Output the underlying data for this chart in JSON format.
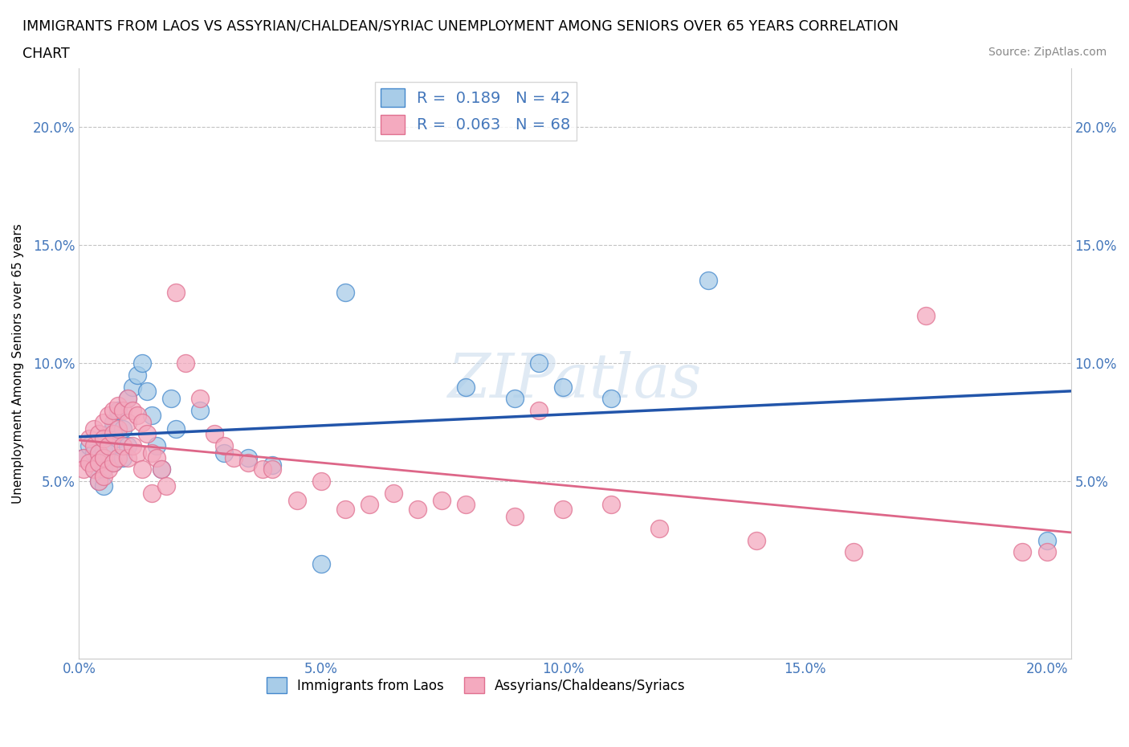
{
  "title_line1": "IMMIGRANTS FROM LAOS VS ASSYRIAN/CHALDEAN/SYRIAC UNEMPLOYMENT AMONG SENIORS OVER 65 YEARS CORRELATION",
  "title_line2": "CHART",
  "source": "Source: ZipAtlas.com",
  "ylabel": "Unemployment Among Seniors over 65 years",
  "xlim": [
    0.0,
    0.205
  ],
  "ylim": [
    -0.025,
    0.225
  ],
  "xticks": [
    0.0,
    0.05,
    0.1,
    0.15,
    0.2
  ],
  "yticks": [
    0.05,
    0.1,
    0.15,
    0.2
  ],
  "xticklabels": [
    "0.0%",
    "5.0%",
    "10.0%",
    "15.0%",
    "20.0%"
  ],
  "yticklabels": [
    "5.0%",
    "10.0%",
    "15.0%",
    "20.0%"
  ],
  "blue_R": 0.189,
  "blue_N": 42,
  "pink_R": 0.063,
  "pink_N": 68,
  "legend_label_blue": "Immigrants from Laos",
  "legend_label_pink": "Assyrians/Chaldeans/Syriacs",
  "blue_color": "#a8cce8",
  "pink_color": "#f4aabf",
  "blue_edge_color": "#4488cc",
  "pink_edge_color": "#e07090",
  "blue_line_color": "#2255aa",
  "pink_line_color": "#dd6688",
  "tick_color": "#4477bb",
  "watermark": "ZIPatlas",
  "blue_x": [
    0.001,
    0.002,
    0.003,
    0.003,
    0.004,
    0.004,
    0.004,
    0.005,
    0.005,
    0.005,
    0.006,
    0.006,
    0.007,
    0.007,
    0.008,
    0.008,
    0.009,
    0.009,
    0.01,
    0.01,
    0.011,
    0.012,
    0.013,
    0.014,
    0.015,
    0.016,
    0.017,
    0.019,
    0.02,
    0.025,
    0.03,
    0.035,
    0.04,
    0.05,
    0.055,
    0.08,
    0.09,
    0.095,
    0.1,
    0.11,
    0.13,
    0.2
  ],
  "blue_y": [
    0.06,
    0.065,
    0.062,
    0.055,
    0.06,
    0.058,
    0.05,
    0.063,
    0.055,
    0.048,
    0.07,
    0.062,
    0.075,
    0.058,
    0.08,
    0.068,
    0.072,
    0.06,
    0.085,
    0.065,
    0.09,
    0.095,
    0.1,
    0.088,
    0.078,
    0.065,
    0.055,
    0.085,
    0.072,
    0.08,
    0.062,
    0.06,
    0.057,
    0.015,
    0.13,
    0.09,
    0.085,
    0.1,
    0.09,
    0.085,
    0.135,
    0.025
  ],
  "pink_x": [
    0.001,
    0.001,
    0.002,
    0.002,
    0.003,
    0.003,
    0.003,
    0.004,
    0.004,
    0.004,
    0.004,
    0.005,
    0.005,
    0.005,
    0.005,
    0.006,
    0.006,
    0.006,
    0.007,
    0.007,
    0.007,
    0.008,
    0.008,
    0.008,
    0.009,
    0.009,
    0.01,
    0.01,
    0.01,
    0.011,
    0.011,
    0.012,
    0.012,
    0.013,
    0.013,
    0.014,
    0.015,
    0.015,
    0.016,
    0.017,
    0.018,
    0.02,
    0.022,
    0.025,
    0.028,
    0.03,
    0.032,
    0.035,
    0.038,
    0.04,
    0.045,
    0.05,
    0.055,
    0.06,
    0.065,
    0.07,
    0.075,
    0.08,
    0.09,
    0.095,
    0.1,
    0.11,
    0.12,
    0.14,
    0.16,
    0.175,
    0.195,
    0.2
  ],
  "pink_y": [
    0.06,
    0.055,
    0.068,
    0.058,
    0.072,
    0.065,
    0.055,
    0.07,
    0.062,
    0.058,
    0.05,
    0.075,
    0.068,
    0.06,
    0.052,
    0.078,
    0.065,
    0.055,
    0.08,
    0.07,
    0.058,
    0.082,
    0.072,
    0.06,
    0.08,
    0.065,
    0.085,
    0.075,
    0.06,
    0.08,
    0.065,
    0.078,
    0.062,
    0.075,
    0.055,
    0.07,
    0.062,
    0.045,
    0.06,
    0.055,
    0.048,
    0.13,
    0.1,
    0.085,
    0.07,
    0.065,
    0.06,
    0.058,
    0.055,
    0.055,
    0.042,
    0.05,
    0.038,
    0.04,
    0.045,
    0.038,
    0.042,
    0.04,
    0.035,
    0.08,
    0.038,
    0.04,
    0.03,
    0.025,
    0.02,
    0.12,
    0.02,
    0.02
  ]
}
